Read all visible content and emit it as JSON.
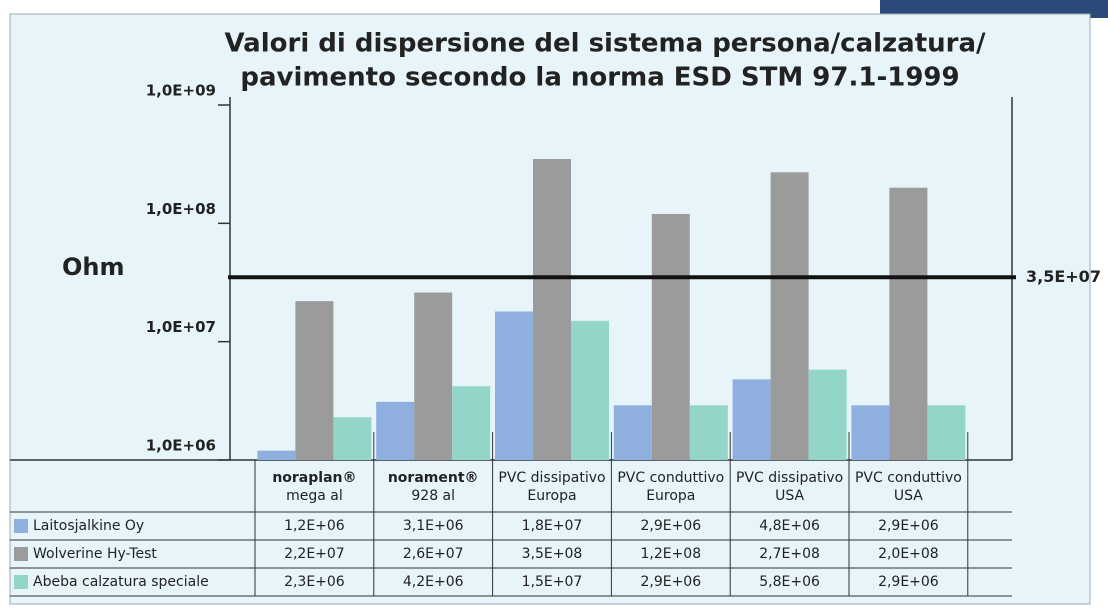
{
  "chart_data": {
    "type": "bar",
    "title": [
      "Valori di dispersione del sistema persona/calzatura/",
      "pavimento secondo la norma ESD STM 97.1-1999"
    ],
    "y_label": "Ohm",
    "log_scale": true,
    "ylim": [
      1000000,
      1000000000
    ],
    "yticks": [
      {
        "value": 1000000,
        "label": "1,0E+06"
      },
      {
        "value": 10000000,
        "label": "1,0E+07"
      },
      {
        "value": 100000000,
        "label": "1,0E+08"
      },
      {
        "value": 1000000000,
        "label": "1,0E+09"
      }
    ],
    "reference_line": {
      "value": 35000000,
      "label": "3,5E+07"
    },
    "categories": [
      [
        "noraplan®",
        "mega al"
      ],
      [
        "norament®",
        "928 al"
      ],
      [
        "PVC dissipativo",
        "Europa"
      ],
      [
        "PVC conduttivo",
        "Europa"
      ],
      [
        "PVC dissipativo",
        "USA"
      ],
      [
        "PVC conduttivo",
        "USA"
      ]
    ],
    "series": [
      {
        "name": "Laitosjalkine Oy",
        "color": "#8fb0de",
        "values": [
          1200000,
          3100000,
          18000000,
          2900000,
          4800000,
          2900000
        ],
        "value_labels": [
          "1,2E+06",
          "3,1E+06",
          "1,8E+07",
          "2,9E+06",
          "4,8E+06",
          "2,9E+06"
        ]
      },
      {
        "name": "Wolverine Hy-Test",
        "color": "#9b9b9b",
        "values": [
          22000000,
          26000000,
          350000000,
          120000000,
          270000000,
          200000000
        ],
        "value_labels": [
          "2,2E+07",
          "2,6E+07",
          "3,5E+08",
          "1,2E+08",
          "2,7E+08",
          "2,0E+08"
        ]
      },
      {
        "name": "Abeba calzatura speciale",
        "color": "#93d6c9",
        "values": [
          2300000,
          4200000,
          15000000,
          2900000,
          5800000,
          2900000
        ],
        "value_labels": [
          "2,3E+06",
          "4,2E+06",
          "1,5E+07",
          "2,9E+06",
          "5,8E+06",
          "2,9E+06"
        ]
      }
    ]
  }
}
